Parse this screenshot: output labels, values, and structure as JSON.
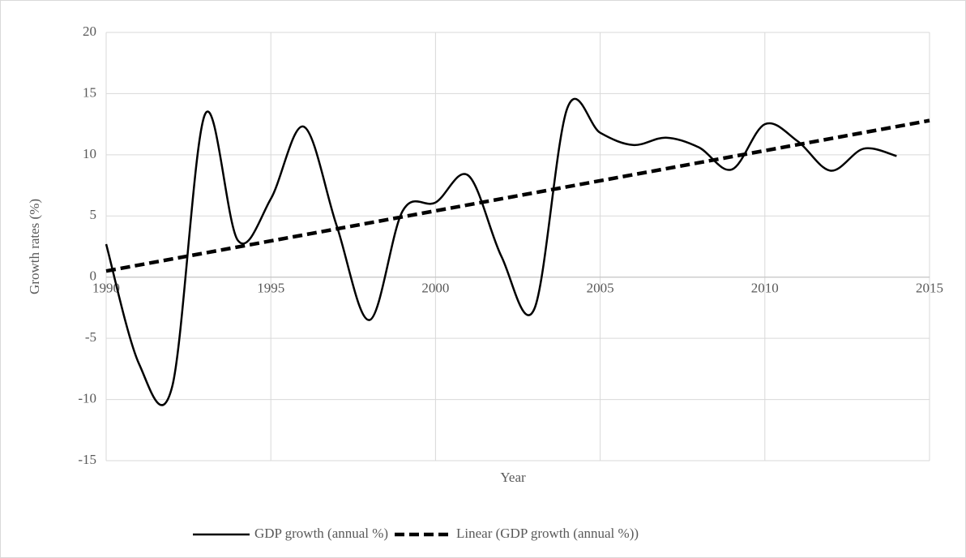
{
  "chart_data": {
    "type": "line",
    "x_label": "Year",
    "y_label": "Growth rates (%)",
    "xlim": [
      1990,
      2015
    ],
    "xticks": [
      1990,
      1995,
      2000,
      2005,
      2010,
      2015
    ],
    "ylim": [
      -15,
      20
    ],
    "yticks": [
      -15,
      -10,
      -5,
      0,
      5,
      10,
      15,
      20
    ],
    "grid": true,
    "legend": "bottom",
    "smooth": true,
    "series": [
      {
        "name": "GDP growth (annual %)",
        "color": "#000000",
        "line_style": "solid",
        "x": [
          1990,
          1991,
          1992,
          1993,
          1994,
          1995,
          1996,
          1997,
          1998,
          1999,
          2000,
          2001,
          2002,
          2003,
          2004,
          2005,
          2006,
          2007,
          2008,
          2009,
          2010,
          2011,
          2012,
          2013,
          2014
        ],
        "values": [
          2.7,
          -7.1,
          -9.0,
          13.3,
          3.0,
          6.4,
          12.3,
          4.2,
          -3.5,
          5.4,
          6.1,
          8.3,
          1.7,
          -2.6,
          13.8,
          11.8,
          10.8,
          11.4,
          10.6,
          8.8,
          12.5,
          11.1,
          8.7,
          10.5,
          9.9
        ]
      },
      {
        "name": "Linear (GDP growth (annual %))",
        "color": "#000000",
        "line_style": "dashed",
        "x": [
          1990,
          2015
        ],
        "values": [
          0.5,
          12.8
        ]
      }
    ]
  }
}
